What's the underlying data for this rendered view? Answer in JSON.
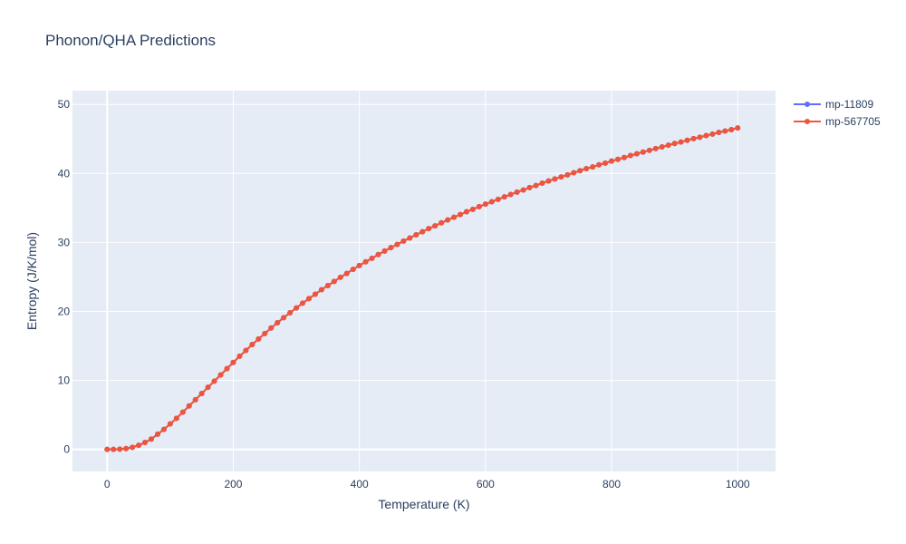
{
  "chart_data": {
    "type": "line",
    "title": "Phonon/QHA Predictions",
    "xlabel": "Temperature (K)",
    "ylabel": "Entropy (J/K/mol)",
    "xlim": [
      -55,
      1060
    ],
    "ylim": [
      -3.2,
      52
    ],
    "xticks": [
      0,
      200,
      400,
      600,
      800,
      1000
    ],
    "yticks": [
      0,
      10,
      20,
      30,
      40,
      50
    ],
    "grid": true,
    "legend_position": "top-right",
    "x": [
      0,
      10,
      20,
      30,
      40,
      50,
      60,
      70,
      80,
      90,
      100,
      110,
      120,
      130,
      140,
      150,
      160,
      170,
      180,
      190,
      200,
      210,
      220,
      230,
      240,
      250,
      260,
      270,
      280,
      290,
      300,
      310,
      320,
      330,
      340,
      350,
      360,
      370,
      380,
      390,
      400,
      410,
      420,
      430,
      440,
      450,
      460,
      470,
      480,
      490,
      500,
      510,
      520,
      530,
      540,
      550,
      560,
      570,
      580,
      590,
      600,
      610,
      620,
      630,
      640,
      650,
      660,
      670,
      680,
      690,
      700,
      710,
      720,
      730,
      740,
      750,
      760,
      770,
      780,
      790,
      800,
      810,
      820,
      830,
      840,
      850,
      860,
      870,
      880,
      890,
      900,
      910,
      920,
      930,
      940,
      950,
      960,
      970,
      980,
      990,
      1000
    ],
    "series": [
      {
        "name": "mp-11809",
        "color": "#636efa",
        "values": [
          0,
          0.01,
          0.03,
          0.12,
          0.3,
          0.6,
          1.0,
          1.5,
          2.2,
          2.9,
          3.7,
          4.5,
          5.4,
          6.3,
          7.2,
          8.1,
          9.0,
          9.9,
          10.8,
          11.7,
          12.6,
          13.5,
          14.35,
          15.2,
          16.0,
          16.8,
          17.6,
          18.35,
          19.1,
          19.8,
          20.5,
          21.2,
          21.85,
          22.5,
          23.15,
          23.75,
          24.35,
          24.95,
          25.5,
          26.1,
          26.65,
          27.2,
          27.7,
          28.25,
          28.75,
          29.25,
          29.7,
          30.2,
          30.65,
          31.1,
          31.55,
          32.0,
          32.4,
          32.85,
          33.25,
          33.65,
          34.05,
          34.45,
          34.8,
          35.2,
          35.55,
          35.9,
          36.25,
          36.6,
          36.95,
          37.3,
          37.6,
          37.95,
          38.25,
          38.6,
          38.9,
          39.2,
          39.5,
          39.8,
          40.1,
          40.4,
          40.7,
          40.95,
          41.25,
          41.5,
          41.8,
          42.05,
          42.3,
          42.6,
          42.85,
          43.1,
          43.35,
          43.6,
          43.85,
          44.1,
          44.35,
          44.55,
          44.8,
          45.05,
          45.25,
          45.5,
          45.7,
          45.95,
          46.15,
          46.35,
          46.6
        ]
      },
      {
        "name": "mp-567705",
        "color": "#ef553b",
        "values": [
          0,
          0.01,
          0.03,
          0.12,
          0.3,
          0.6,
          1.0,
          1.5,
          2.2,
          2.9,
          3.7,
          4.5,
          5.4,
          6.3,
          7.2,
          8.1,
          9.0,
          9.9,
          10.8,
          11.7,
          12.6,
          13.5,
          14.35,
          15.2,
          16.0,
          16.8,
          17.6,
          18.35,
          19.1,
          19.8,
          20.5,
          21.2,
          21.85,
          22.5,
          23.15,
          23.75,
          24.35,
          24.95,
          25.5,
          26.1,
          26.65,
          27.2,
          27.7,
          28.25,
          28.75,
          29.25,
          29.7,
          30.2,
          30.65,
          31.1,
          31.55,
          32.0,
          32.4,
          32.85,
          33.25,
          33.65,
          34.05,
          34.45,
          34.8,
          35.2,
          35.55,
          35.9,
          36.25,
          36.6,
          36.95,
          37.3,
          37.6,
          37.95,
          38.25,
          38.6,
          38.9,
          39.2,
          39.5,
          39.8,
          40.1,
          40.4,
          40.7,
          40.95,
          41.25,
          41.5,
          41.8,
          42.05,
          42.3,
          42.6,
          42.85,
          43.1,
          43.35,
          43.6,
          43.85,
          44.1,
          44.35,
          44.55,
          44.8,
          45.05,
          45.25,
          45.5,
          45.7,
          45.95,
          46.15,
          46.35,
          46.6
        ]
      }
    ]
  }
}
